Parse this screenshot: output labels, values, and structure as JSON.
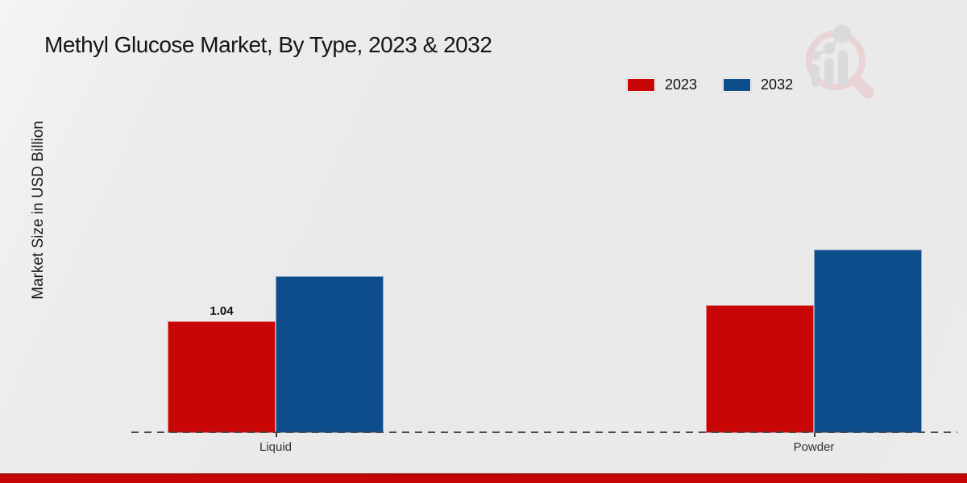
{
  "chart_data": {
    "type": "bar",
    "title": "Methyl Glucose Market, By Type, 2023 & 2032",
    "ylabel": "Market Size in USD Billion",
    "xlabel": "",
    "categories": [
      "Liquid",
      "Powder"
    ],
    "series": [
      {
        "name": "2023",
        "color": "#c90606",
        "values": [
          1.04,
          1.19
        ],
        "labels": [
          "1.04",
          null
        ]
      },
      {
        "name": "2032",
        "color": "#0e4d8c",
        "values": [
          1.46,
          1.71
        ],
        "labels": [
          null,
          null
        ]
      }
    ],
    "ylim": [
      0,
      1.8
    ],
    "legend_position": "top-right",
    "grid": false,
    "axis_style": "dashed-baseline-only"
  },
  "branding": {
    "watermark_icon": "market-research-future-magnifier-logo",
    "footer_bar_color": "#c40606",
    "accent_red": "#c90606",
    "accent_blue": "#0e4d8c"
  }
}
